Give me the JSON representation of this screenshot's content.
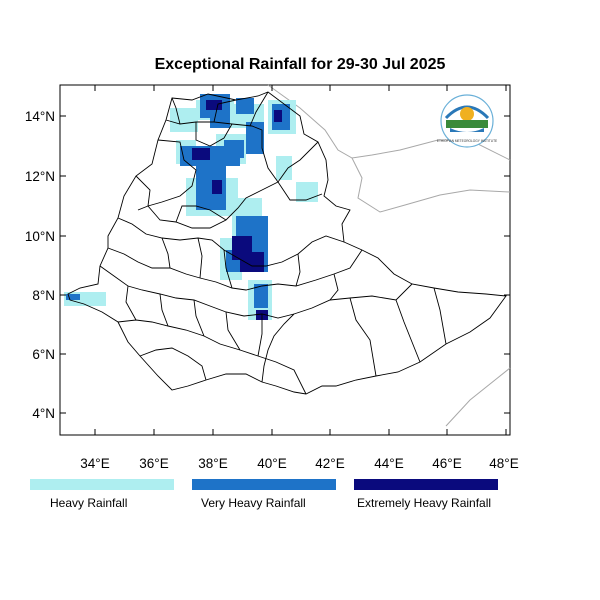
{
  "title": "Exceptional Rainfall for 29-30 Jul 2025",
  "axes": {
    "x_ticks": [
      "34°E",
      "36°E",
      "38°E",
      "40°E",
      "42°E",
      "44°E",
      "46°E",
      "48°E"
    ],
    "y_ticks": [
      "14°N",
      "12°N",
      "10°N",
      "8°N",
      "6°N",
      "4°N"
    ]
  },
  "legend": [
    {
      "label": "Heavy Rainfall",
      "color": "#aeeef0"
    },
    {
      "label": "Very Heavy Rainfall",
      "color": "#1e73c8"
    },
    {
      "label": "Extremely Heavy Rainfall",
      "color": "#0a0a7d"
    }
  ],
  "logo_text": "ETHIOPIAN METEOROLOGY INSTITUTE",
  "colors": {
    "heavy": "#aeeef0",
    "very_heavy": "#1e73c8",
    "extreme": "#0a0a7d"
  }
}
